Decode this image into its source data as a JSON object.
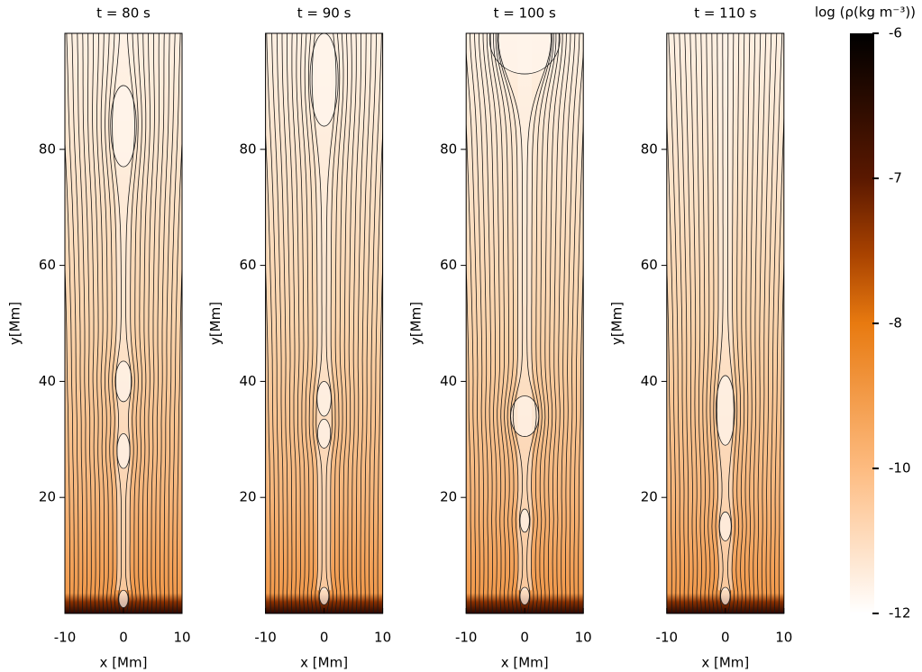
{
  "chart_data": [
    {
      "type": "heatmap",
      "title": "t = 80 s",
      "xlabel": "x [Mm]",
      "ylabel": "y[Mm]",
      "xlim": [
        -10,
        10
      ],
      "ylim": [
        0,
        100
      ],
      "xticks": [
        -10,
        0,
        10
      ],
      "yticks": [
        20,
        40,
        60,
        80
      ]
    },
    {
      "type": "heatmap",
      "title": "t = 90 s",
      "xlabel": "x [Mm]",
      "ylabel": "y[Mm]",
      "xlim": [
        -10,
        10
      ],
      "ylim": [
        0,
        100
      ],
      "xticks": [
        -10,
        0,
        10
      ],
      "yticks": [
        20,
        40,
        60,
        80
      ]
    },
    {
      "type": "heatmap",
      "title": "t = 100 s",
      "xlabel": "x [Mm]",
      "ylabel": "y[Mm]",
      "xlim": [
        -10,
        10
      ],
      "ylim": [
        0,
        100
      ],
      "xticks": [
        -10,
        0,
        10
      ],
      "yticks": [
        20,
        40,
        60,
        80
      ]
    },
    {
      "type": "heatmap",
      "title": "t = 110 s",
      "xlabel": "x [Mm]",
      "ylabel": "y[Mm]",
      "xlim": [
        -10,
        10
      ],
      "ylim": [
        0,
        100
      ],
      "xticks": [
        -10,
        0,
        10
      ],
      "yticks": [
        20,
        40,
        60,
        80
      ]
    }
  ],
  "colorbar": {
    "label": "log (ρ(kg m⁻³))",
    "ticks": [
      -12,
      -10,
      -8,
      -7,
      -6
    ]
  }
}
